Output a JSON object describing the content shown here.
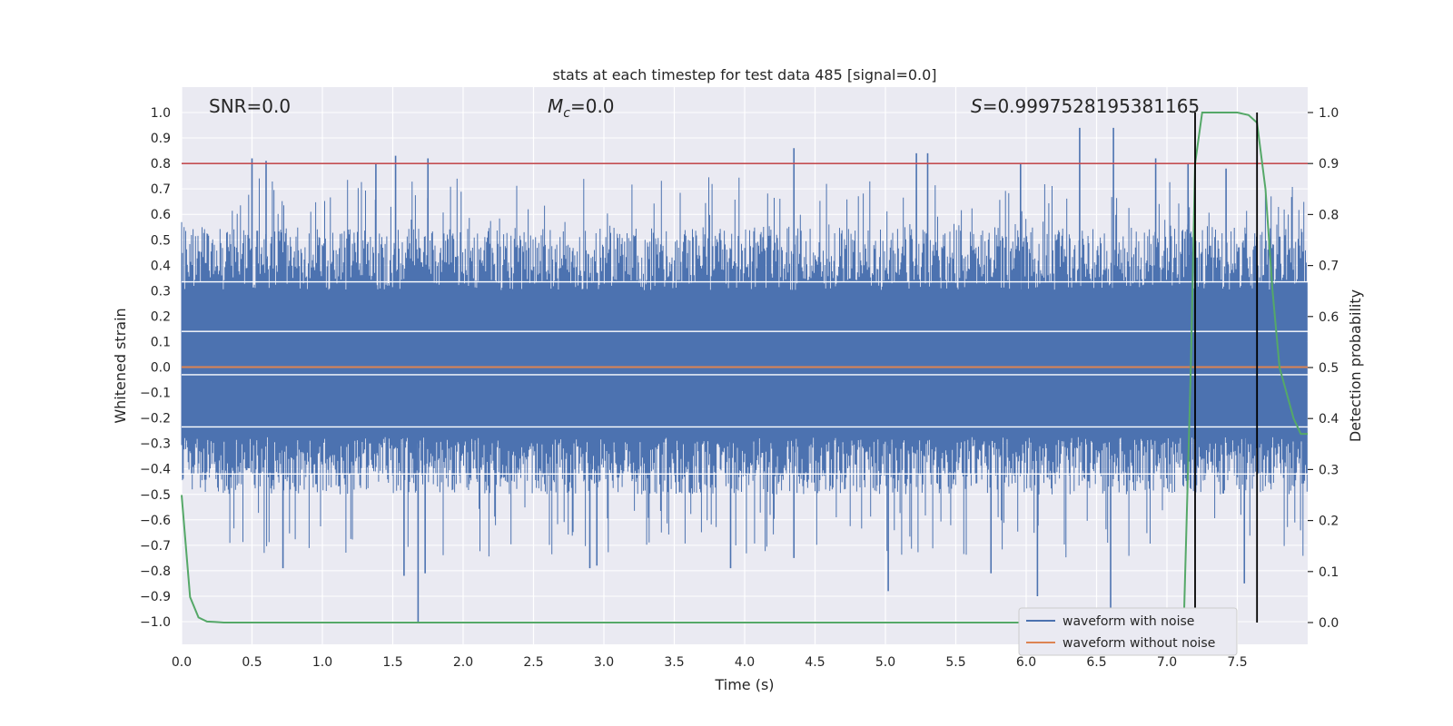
{
  "chart_data": {
    "type": "line",
    "title": "stats at each timestep for test data 485 [signal=0.0]",
    "xlabel": "Time (s)",
    "ylabel": "Whitened strain",
    "y2label": "Detection probability",
    "xlim": [
      0.0,
      8.0
    ],
    "ylim": [
      -1.1,
      1.05
    ],
    "y2lim": [
      -0.05,
      1.03
    ],
    "xticks": [
      0.0,
      0.5,
      1.0,
      1.5,
      2.0,
      2.5,
      3.0,
      3.5,
      4.0,
      4.5,
      5.0,
      5.5,
      6.0,
      6.5,
      7.0,
      7.5
    ],
    "xtick_labels": [
      "0.0",
      "0.5",
      "1.0",
      "1.5",
      "2.0",
      "2.5",
      "3.0",
      "3.5",
      "4.0",
      "4.5",
      "5.0",
      "5.5",
      "6.0",
      "6.5",
      "7.0",
      "7.5"
    ],
    "yticks": [
      1.0,
      0.9,
      0.8,
      0.7,
      0.6,
      0.5,
      0.4,
      0.3,
      0.2,
      0.1,
      0.0,
      -0.1,
      -0.2,
      -0.3,
      -0.4,
      -0.5,
      -0.6,
      -0.7,
      -0.8,
      -0.9,
      -1.0
    ],
    "ytick_labels": [
      "1.0",
      "0.9",
      "0.8",
      "0.7",
      "0.6",
      "0.5",
      "0.4",
      "0.3",
      "0.2",
      "0.1",
      "0.0",
      "−0.1",
      "−0.2",
      "−0.3",
      "−0.4",
      "−0.5",
      "−0.6",
      "−0.7",
      "−0.8",
      "−0.9",
      "−1.0"
    ],
    "y2ticks": [
      1.0,
      0.9,
      0.8,
      0.7,
      0.6,
      0.5,
      0.4,
      0.3,
      0.2,
      0.1,
      0.0
    ],
    "y2tick_labels": [
      "1.0",
      "0.9",
      "0.8",
      "0.7",
      "0.6",
      "0.5",
      "0.4",
      "0.3",
      "0.2",
      "0.1",
      "0.0"
    ],
    "annotations": {
      "snr": "SNR=0.0",
      "mc_symbol": "M",
      "mc_sub": "c",
      "mc_value": "=0.0",
      "s_symbol": "S",
      "s_value": "=0.9997528195381165"
    },
    "threshold_line": {
      "axis": "y2",
      "value": 0.9,
      "color": "#c44e52"
    },
    "vertical_lines": [
      7.2,
      7.64
    ],
    "series": [
      {
        "name": "waveform with noise",
        "axis": "y1",
        "color": "#4c72b0",
        "kind": "noise",
        "spread_low": -0.5,
        "spread_high": 0.55,
        "peaks": [
          {
            "x": 0.5,
            "y": 0.82
          },
          {
            "x": 0.6,
            "y": 0.81
          },
          {
            "x": 1.38,
            "y": 0.8
          },
          {
            "x": 1.52,
            "y": 0.83
          },
          {
            "x": 1.75,
            "y": 0.82
          },
          {
            "x": 4.35,
            "y": 0.86
          },
          {
            "x": 5.22,
            "y": 0.84
          },
          {
            "x": 5.3,
            "y": 0.84
          },
          {
            "x": 5.96,
            "y": 0.8
          },
          {
            "x": 6.38,
            "y": 0.94
          },
          {
            "x": 6.62,
            "y": 0.94
          },
          {
            "x": 6.92,
            "y": 0.82
          },
          {
            "x": 7.15,
            "y": 0.8
          },
          {
            "x": 7.42,
            "y": 0.78
          }
        ],
        "troughs": [
          {
            "x": 1.58,
            "y": -0.82
          },
          {
            "x": 1.68,
            "y": -1.0
          },
          {
            "x": 1.73,
            "y": -0.81
          },
          {
            "x": 0.72,
            "y": -0.79
          },
          {
            "x": 2.9,
            "y": -0.79
          },
          {
            "x": 2.95,
            "y": -0.78
          },
          {
            "x": 3.9,
            "y": -0.79
          },
          {
            "x": 4.35,
            "y": -0.75
          },
          {
            "x": 5.02,
            "y": -0.88
          },
          {
            "x": 5.75,
            "y": -0.81
          },
          {
            "x": 6.08,
            "y": -0.9
          },
          {
            "x": 6.6,
            "y": -1.0
          },
          {
            "x": 7.55,
            "y": -0.85
          }
        ]
      },
      {
        "name": "waveform without noise",
        "axis": "y1",
        "color": "#dd8452",
        "x": [
          0.0,
          8.0
        ],
        "y": [
          0.0,
          0.0
        ]
      },
      {
        "name": "detection probability",
        "axis": "y2",
        "color": "#55a868",
        "x": [
          0.0,
          0.06,
          0.12,
          0.18,
          0.24,
          0.3,
          0.5,
          1.0,
          2.0,
          3.0,
          4.0,
          5.0,
          6.0,
          6.8,
          7.0,
          7.12,
          7.17,
          7.2,
          7.25,
          7.3,
          7.5,
          7.58,
          7.64,
          7.7,
          7.75,
          7.8,
          7.9,
          7.95,
          8.0
        ],
        "y": [
          0.25,
          0.05,
          0.01,
          0.002,
          0.001,
          0.0,
          0.0,
          0.0,
          0.0,
          0.0,
          0.0,
          0.0,
          0.0,
          0.0,
          0.0,
          0.0,
          0.5,
          0.9,
          1.0,
          1.0,
          1.0,
          0.995,
          0.98,
          0.85,
          0.65,
          0.5,
          0.4,
          0.37,
          0.37
        ]
      }
    ],
    "legend": {
      "position": "lower-right",
      "entries": [
        {
          "label": "waveform with noise",
          "color": "#4c72b0"
        },
        {
          "label": "waveform without noise",
          "color": "#dd8452"
        }
      ]
    },
    "grid": true,
    "background": "#eaeaf2"
  }
}
